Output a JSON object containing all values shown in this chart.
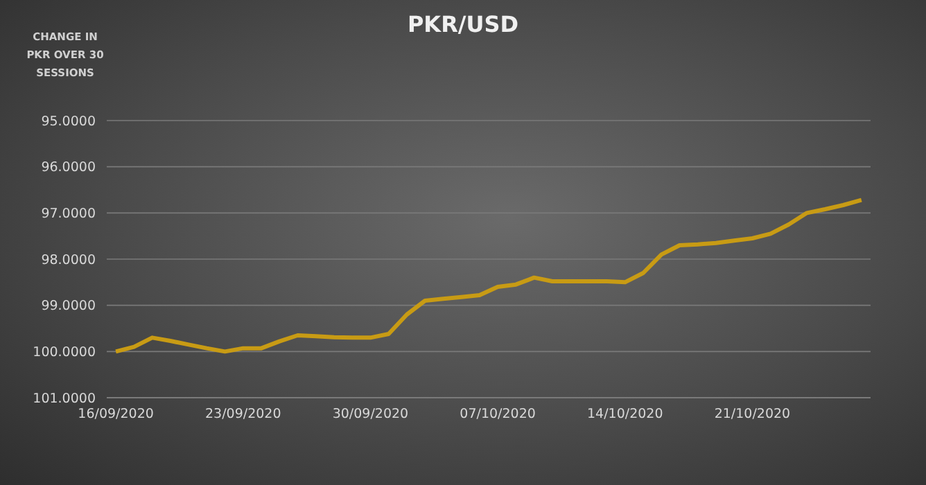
{
  "chart_data": {
    "type": "line",
    "title": "PKR/USD",
    "annotations": [
      "CHANGE IN PKR OVER 30 SESSIONS"
    ],
    "x": [
      "2020-09-16",
      "2020-09-17",
      "2020-09-18",
      "2020-09-19",
      "2020-09-20",
      "2020-09-21",
      "2020-09-22",
      "2020-09-23",
      "2020-09-24",
      "2020-09-25",
      "2020-09-26",
      "2020-09-27",
      "2020-09-28",
      "2020-09-29",
      "2020-09-30",
      "2020-10-01",
      "2020-10-02",
      "2020-10-03",
      "2020-10-04",
      "2020-10-05",
      "2020-10-06",
      "2020-10-07",
      "2020-10-08",
      "2020-10-09",
      "2020-10-10",
      "2020-10-11",
      "2020-10-12",
      "2020-10-13",
      "2020-10-14",
      "2020-10-15",
      "2020-10-16",
      "2020-10-17",
      "2020-10-18",
      "2020-10-19",
      "2020-10-20",
      "2020-10-21",
      "2020-10-22",
      "2020-10-23",
      "2020-10-24",
      "2020-10-25",
      "2020-10-26",
      "2020-10-27"
    ],
    "series": [
      {
        "color": "#c89b14",
        "values": [
          100.0,
          99.9,
          99.7,
          99.77,
          99.85,
          99.93,
          100.0,
          99.93,
          99.93,
          99.78,
          99.65,
          99.67,
          99.69,
          99.7,
          99.7,
          99.62,
          99.2,
          98.9,
          98.86,
          98.82,
          98.78,
          98.6,
          98.55,
          98.4,
          98.48,
          98.48,
          98.48,
          98.48,
          98.5,
          98.3,
          97.9,
          97.7,
          97.68,
          97.65,
          97.6,
          97.55,
          97.45,
          97.25,
          97.0,
          96.92,
          96.83,
          96.72
        ]
      }
    ],
    "xlim": [
      "2020-09-15T12:00",
      "2020-10-27T12:00"
    ],
    "xticks": [
      {
        "value": "2020-09-16",
        "label": "16/09/2020"
      },
      {
        "value": "2020-09-23",
        "label": "23/09/2020"
      },
      {
        "value": "2020-09-30",
        "label": "30/09/2020"
      },
      {
        "value": "2020-10-07",
        "label": "07/10/2020"
      },
      {
        "value": "2020-10-14",
        "label": "14/10/2020"
      },
      {
        "value": "2020-10-21",
        "label": "21/10/2020"
      }
    ],
    "ylim": [
      101,
      95
    ],
    "yticks": [
      {
        "value": 95,
        "label": "95.0000"
      },
      {
        "value": 96,
        "label": "96.0000"
      },
      {
        "value": 97,
        "label": "97.0000"
      },
      {
        "value": 98,
        "label": "98.0000"
      },
      {
        "value": 99,
        "label": "99.0000"
      },
      {
        "value": 100,
        "label": "100.0000"
      },
      {
        "value": 101,
        "label": "101.0000"
      }
    ],
    "grid": "y"
  }
}
